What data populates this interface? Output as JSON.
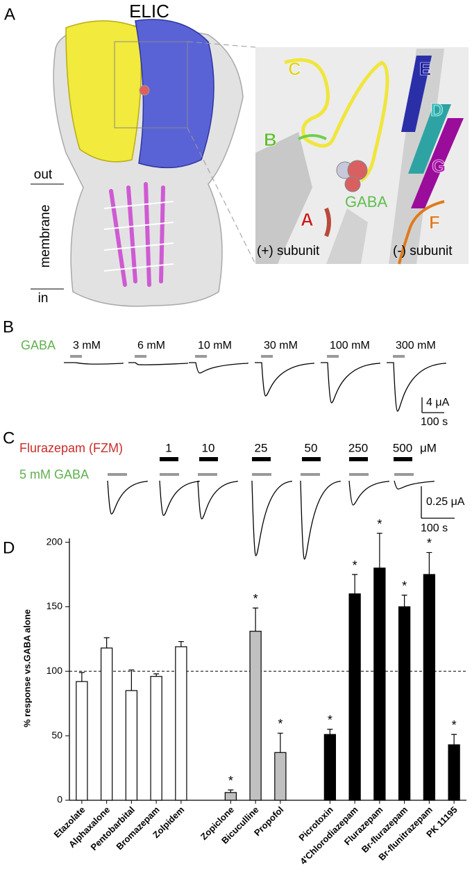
{
  "panel_a": {
    "label": "A",
    "title": "ELIC",
    "out": "out",
    "membrane": "membrane",
    "in": "in",
    "inset_labels": [
      "C",
      "E",
      "D",
      "B",
      "G",
      "GABA",
      "A",
      "F"
    ],
    "subunits": [
      "(+) subunit",
      "(-) subunit"
    ]
  },
  "panel_b": {
    "label": "B",
    "agonist": "GABA",
    "concentrations": [
      "3 mM",
      "6 mM",
      "10 mM",
      "30 mM",
      "100 mM",
      "300 mM"
    ],
    "scale_current": "4 μA",
    "scale_time": "100 s"
  },
  "panel_c": {
    "label": "C",
    "modulator": "Flurazepam (FZM)",
    "concentrations": [
      "1",
      "10",
      "25",
      "50",
      "250",
      "500"
    ],
    "unit": "μM",
    "agonist": "5 mM GABA",
    "scale_current": "0.25 μA",
    "scale_time": "100 s"
  },
  "panel_d": {
    "label": "D"
  },
  "chart_data": {
    "type": "bar",
    "ylabel": "% response vs.GABA alone",
    "categories": [
      "Etazolate",
      "Alphaxalone",
      "Pentobarbital",
      "Bromazepam",
      "Zolpidem",
      null,
      "Zopiclone",
      "Bicuculline",
      "Propofol",
      null,
      "Picrotoxin",
      "4'Chlorodiazepam",
      "Flurazepam",
      "Br-flurazepam",
      "Br-flunitrazepam",
      "PK 11195"
    ],
    "values": [
      92,
      118,
      85,
      96,
      119,
      null,
      6,
      131,
      37,
      null,
      51,
      160,
      180,
      150,
      175,
      43
    ],
    "errors": [
      7,
      8,
      16,
      2,
      4,
      null,
      2,
      18,
      15,
      null,
      4,
      15,
      27,
      9,
      17,
      8
    ],
    "bar_colors": [
      "#ffffff",
      "#ffffff",
      "#ffffff",
      "#ffffff",
      "#ffffff",
      null,
      "#c0c0c0",
      "#c0c0c0",
      "#c0c0c0",
      null,
      "#000000",
      "#000000",
      "#000000",
      "#000000",
      "#000000",
      "#000000"
    ],
    "significant": [
      false,
      false,
      false,
      false,
      false,
      false,
      true,
      true,
      true,
      false,
      true,
      true,
      true,
      true,
      true,
      true
    ],
    "significance_mark": "*",
    "ylim": [
      0,
      203
    ],
    "yticks": [
      0,
      50,
      100,
      150,
      200
    ],
    "reference_line": 100,
    "reference_dashed": true
  }
}
